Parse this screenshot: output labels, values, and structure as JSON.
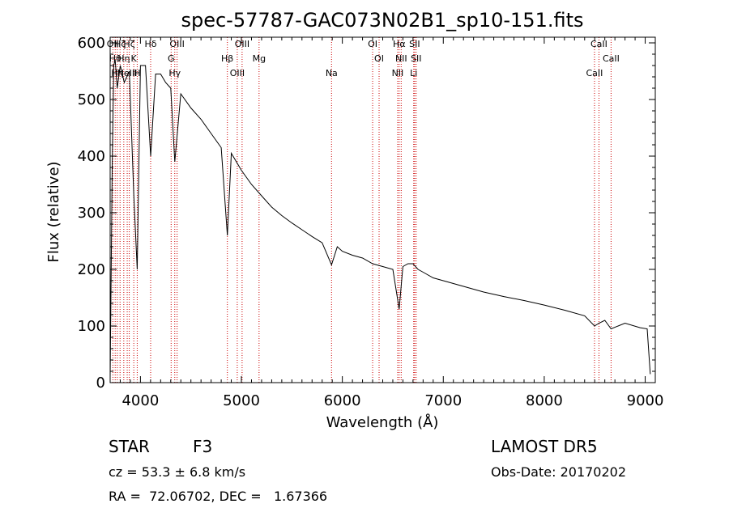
{
  "chart_data": {
    "type": "line",
    "title": "spec-57787-GAC073N02B1_sp10-151.fits",
    "xlabel": "Wavelength (Å)",
    "ylabel": "Flux (relative)",
    "xlim": [
      3700,
      9100
    ],
    "ylim": [
      0,
      610
    ],
    "xticks": [
      "4000",
      "5000",
      "6000",
      "7000",
      "8000",
      "9000"
    ],
    "yticks": [
      "0",
      "100",
      "200",
      "300",
      "400",
      "500",
      "600"
    ],
    "grid": false,
    "line_color": "#000000",
    "marker_color": "#cc0000",
    "series": [
      {
        "x": [
          3700,
          3720,
          3735,
          3750,
          3770,
          3800,
          3840,
          3890,
          3934,
          3968,
          4000,
          4050,
          4101,
          4150,
          4200,
          4250,
          4300,
          4340,
          4400,
          4500,
          4600,
          4700,
          4800,
          4861,
          4900,
          5000,
          5100,
          5200,
          5300,
          5400,
          5500,
          5600,
          5700,
          5800,
          5893,
          5950,
          6000,
          6100,
          6200,
          6300,
          6400,
          6500,
          6563,
          6600,
          6650,
          6700,
          6750,
          6800,
          6900,
          7000,
          7200,
          7400,
          7600,
          7800,
          8000,
          8200,
          8400,
          8498,
          8542,
          8600,
          8662,
          8800,
          8950,
          9020,
          9050
        ],
        "y": [
          10,
          380,
          560,
          570,
          520,
          560,
          530,
          550,
          330,
          200,
          560,
          560,
          400,
          545,
          545,
          530,
          520,
          390,
          510,
          485,
          465,
          440,
          415,
          260,
          405,
          375,
          350,
          330,
          310,
          295,
          282,
          270,
          258,
          247,
          208,
          240,
          232,
          225,
          220,
          210,
          205,
          200,
          130,
          205,
          210,
          210,
          200,
          195,
          185,
          180,
          170,
          160,
          152,
          145,
          137,
          128,
          118,
          100,
          105,
          110,
          95,
          105,
          97,
          95,
          15
        ]
      }
    ],
    "line_markers": [
      {
        "x": 3727,
        "label": "OII"
      },
      {
        "x": 3750,
        "label": "Hθ"
      },
      {
        "x": 3771,
        "label": "Hη"
      },
      {
        "x": 3798,
        "label": "Hζ"
      },
      {
        "x": 3835,
        "label": "Hη"
      },
      {
        "x": 3869,
        "label": "NeIII"
      },
      {
        "x": 3889,
        "label": "Hζ"
      },
      {
        "x": 3934,
        "label": "K"
      },
      {
        "x": 3968,
        "label": "H"
      },
      {
        "x": 4101,
        "label": "Hδ"
      },
      {
        "x": 4304,
        "label": "G"
      },
      {
        "x": 4340,
        "label": "Hγ"
      },
      {
        "x": 4363,
        "label": "OIII"
      },
      {
        "x": 4861,
        "label": "Hβ"
      },
      {
        "x": 4959,
        "label": "OIII"
      },
      {
        "x": 5007,
        "label": "OIII"
      },
      {
        "x": 5175,
        "label": "Mg"
      },
      {
        "x": 5893,
        "label": "Na"
      },
      {
        "x": 6300,
        "label": "OI"
      },
      {
        "x": 6364,
        "label": "OI"
      },
      {
        "x": 6548,
        "label": "NII"
      },
      {
        "x": 6563,
        "label": "Hα"
      },
      {
        "x": 6583,
        "label": "NII"
      },
      {
        "x": 6707,
        "label": "Li"
      },
      {
        "x": 6716,
        "label": "SII"
      },
      {
        "x": 6731,
        "label": "SII"
      },
      {
        "x": 8498,
        "label": "CaII"
      },
      {
        "x": 8542,
        "label": "CaII"
      },
      {
        "x": 8662,
        "label": "CaII"
      }
    ]
  },
  "info": {
    "object_class": "STAR",
    "subclass": "F3",
    "survey": "LAMOST DR5",
    "redshift_label": "cz = 53.3 ± 6.8 km/s",
    "obs_date": "Obs-Date: 20170202",
    "coords": "RA =  72.06702, DEC =   1.67366"
  }
}
